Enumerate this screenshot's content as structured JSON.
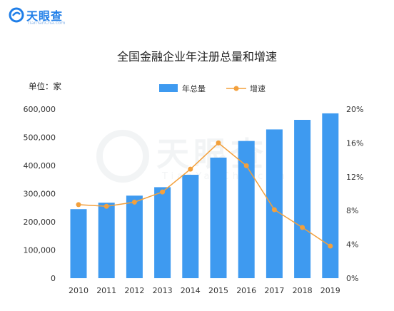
{
  "logo": {
    "name": "天眼查",
    "sub": "TianYanCha.com"
  },
  "watermark": {
    "name": "天眼查",
    "sub": "TianYanCha.com"
  },
  "chart_data": {
    "type": "bar",
    "title": "全国金融企业年注册总量和增速",
    "unit_label": "单位：家",
    "categories": [
      "2010",
      "2011",
      "2012",
      "2013",
      "2014",
      "2015",
      "2016",
      "2017",
      "2018",
      "2019"
    ],
    "series": [
      {
        "name": "年总量",
        "type": "bar",
        "axis": "left",
        "color": "#3e9af0",
        "values": [
          245000,
          268000,
          293000,
          323000,
          367000,
          428000,
          487000,
          528000,
          562000,
          585000
        ]
      },
      {
        "name": "增速",
        "type": "line",
        "axis": "right",
        "color": "#f3a03c",
        "values": [
          8.7,
          8.5,
          9.0,
          10.2,
          12.9,
          16.0,
          13.3,
          8.1,
          6.0,
          3.8
        ]
      }
    ],
    "y_left": {
      "range": [
        0,
        600000
      ],
      "ticks": [
        "0",
        "100,000",
        "200,000",
        "300,000",
        "400,000",
        "500,000",
        "600,000"
      ]
    },
    "y_right": {
      "range": [
        0,
        20
      ],
      "ticks": [
        "0%",
        "4%",
        "8%",
        "12%",
        "16%",
        "20%"
      ]
    },
    "legend": "top-center",
    "grid": false
  }
}
